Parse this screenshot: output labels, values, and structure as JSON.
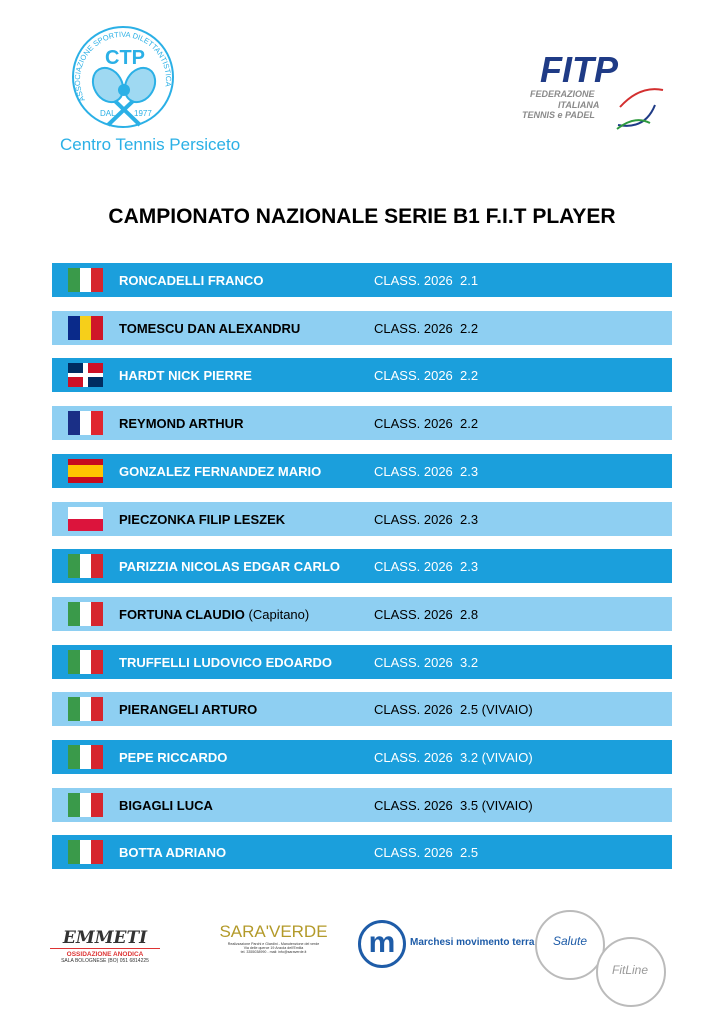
{
  "header": {
    "club_logo": {
      "arc_text": "ASSOCIAZIONE SPORTIVA DILETTANTISTICA",
      "monogram": "CTP",
      "since_left": "DAL",
      "since_right": "1977",
      "name": "Centro Tennis Persiceto"
    },
    "fitp_logo": {
      "acronym": "FITP",
      "line1": "FEDERAZIONE",
      "line2": "ITALIANA",
      "line3": "TENNIS e PADEL"
    }
  },
  "title": "CAMPIONATO NAZIONALE SERIE B1 F.I.T PLAYER",
  "players": [
    {
      "flag": "italy",
      "name": "RONCADELLI FRANCO",
      "extra": "",
      "class": "CLASS. 2026  2.1"
    },
    {
      "flag": "romania",
      "name": "TOMESCU DAN ALEXANDRU",
      "extra": "",
      "class": "CLASS. 2026  2.2"
    },
    {
      "flag": "dominican-republic",
      "name": "HARDT NICK PIERRE",
      "extra": "",
      "class": "CLASS. 2026  2.2"
    },
    {
      "flag": "france",
      "name": "REYMOND ARTHUR",
      "extra": "",
      "class": "CLASS. 2026  2.2"
    },
    {
      "flag": "spain",
      "name": "GONZALEZ FERNANDEZ MARIO",
      "extra": "",
      "class": "CLASS. 2026  2.3"
    },
    {
      "flag": "poland",
      "name": "PIECZONKA FILIP LESZEK",
      "extra": "",
      "class": "CLASS. 2026  2.3"
    },
    {
      "flag": "italy",
      "name": "PARIZZIA NICOLAS EDGAR CARLO",
      "extra": "",
      "class": "CLASS. 2026  2.3"
    },
    {
      "flag": "italy",
      "name": "FORTUNA CLAUDIO",
      "extra": " (Capitano)",
      "class": "CLASS. 2026  2.8"
    },
    {
      "flag": "italy",
      "name": "TRUFFELLI LUDOVICO EDOARDO",
      "extra": "",
      "class": "CLASS. 2026  3.2"
    },
    {
      "flag": "italy",
      "name": "PIERANGELI ARTURO",
      "extra": "",
      "class": "CLASS. 2026  2.5 (VIVAIO)"
    },
    {
      "flag": "italy",
      "name": "PEPE RICCARDO",
      "extra": "",
      "class": "CLASS. 2026  3.2 (VIVAIO)"
    },
    {
      "flag": "italy",
      "name": "BIGAGLI LUCA",
      "extra": "",
      "class": "CLASS. 2026  3.5 (VIVAIO)"
    },
    {
      "flag": "italy",
      "name": "BOTTA ADRIANO",
      "extra": "",
      "class": "CLASS. 2026  2.5"
    }
  ],
  "colors": {
    "row_dark": "#1b9fdc",
    "row_light": "#8ecff2"
  },
  "sponsors": {
    "emmeti": {
      "name": "EMMETI",
      "line1": "OSSIDAZIONE ANODICA",
      "line2": "SALA BOLOGNESE (BO)  051 6814225"
    },
    "saraverde": {
      "name": "SARA'VERDE",
      "line1": "Realizzazione Parchi e Giardini - Manutenzione del verde",
      "line2": "Via delle querce 19 Anzola dell'Emilia",
      "line3": "tel. 3355038990 - mail: info@saraverde.it"
    },
    "marchesi": {
      "mark": "m",
      "name": "Marchesi movimento terra"
    },
    "salute": {
      "name": "Salute"
    },
    "fitline": {
      "name": "FitLine"
    }
  }
}
